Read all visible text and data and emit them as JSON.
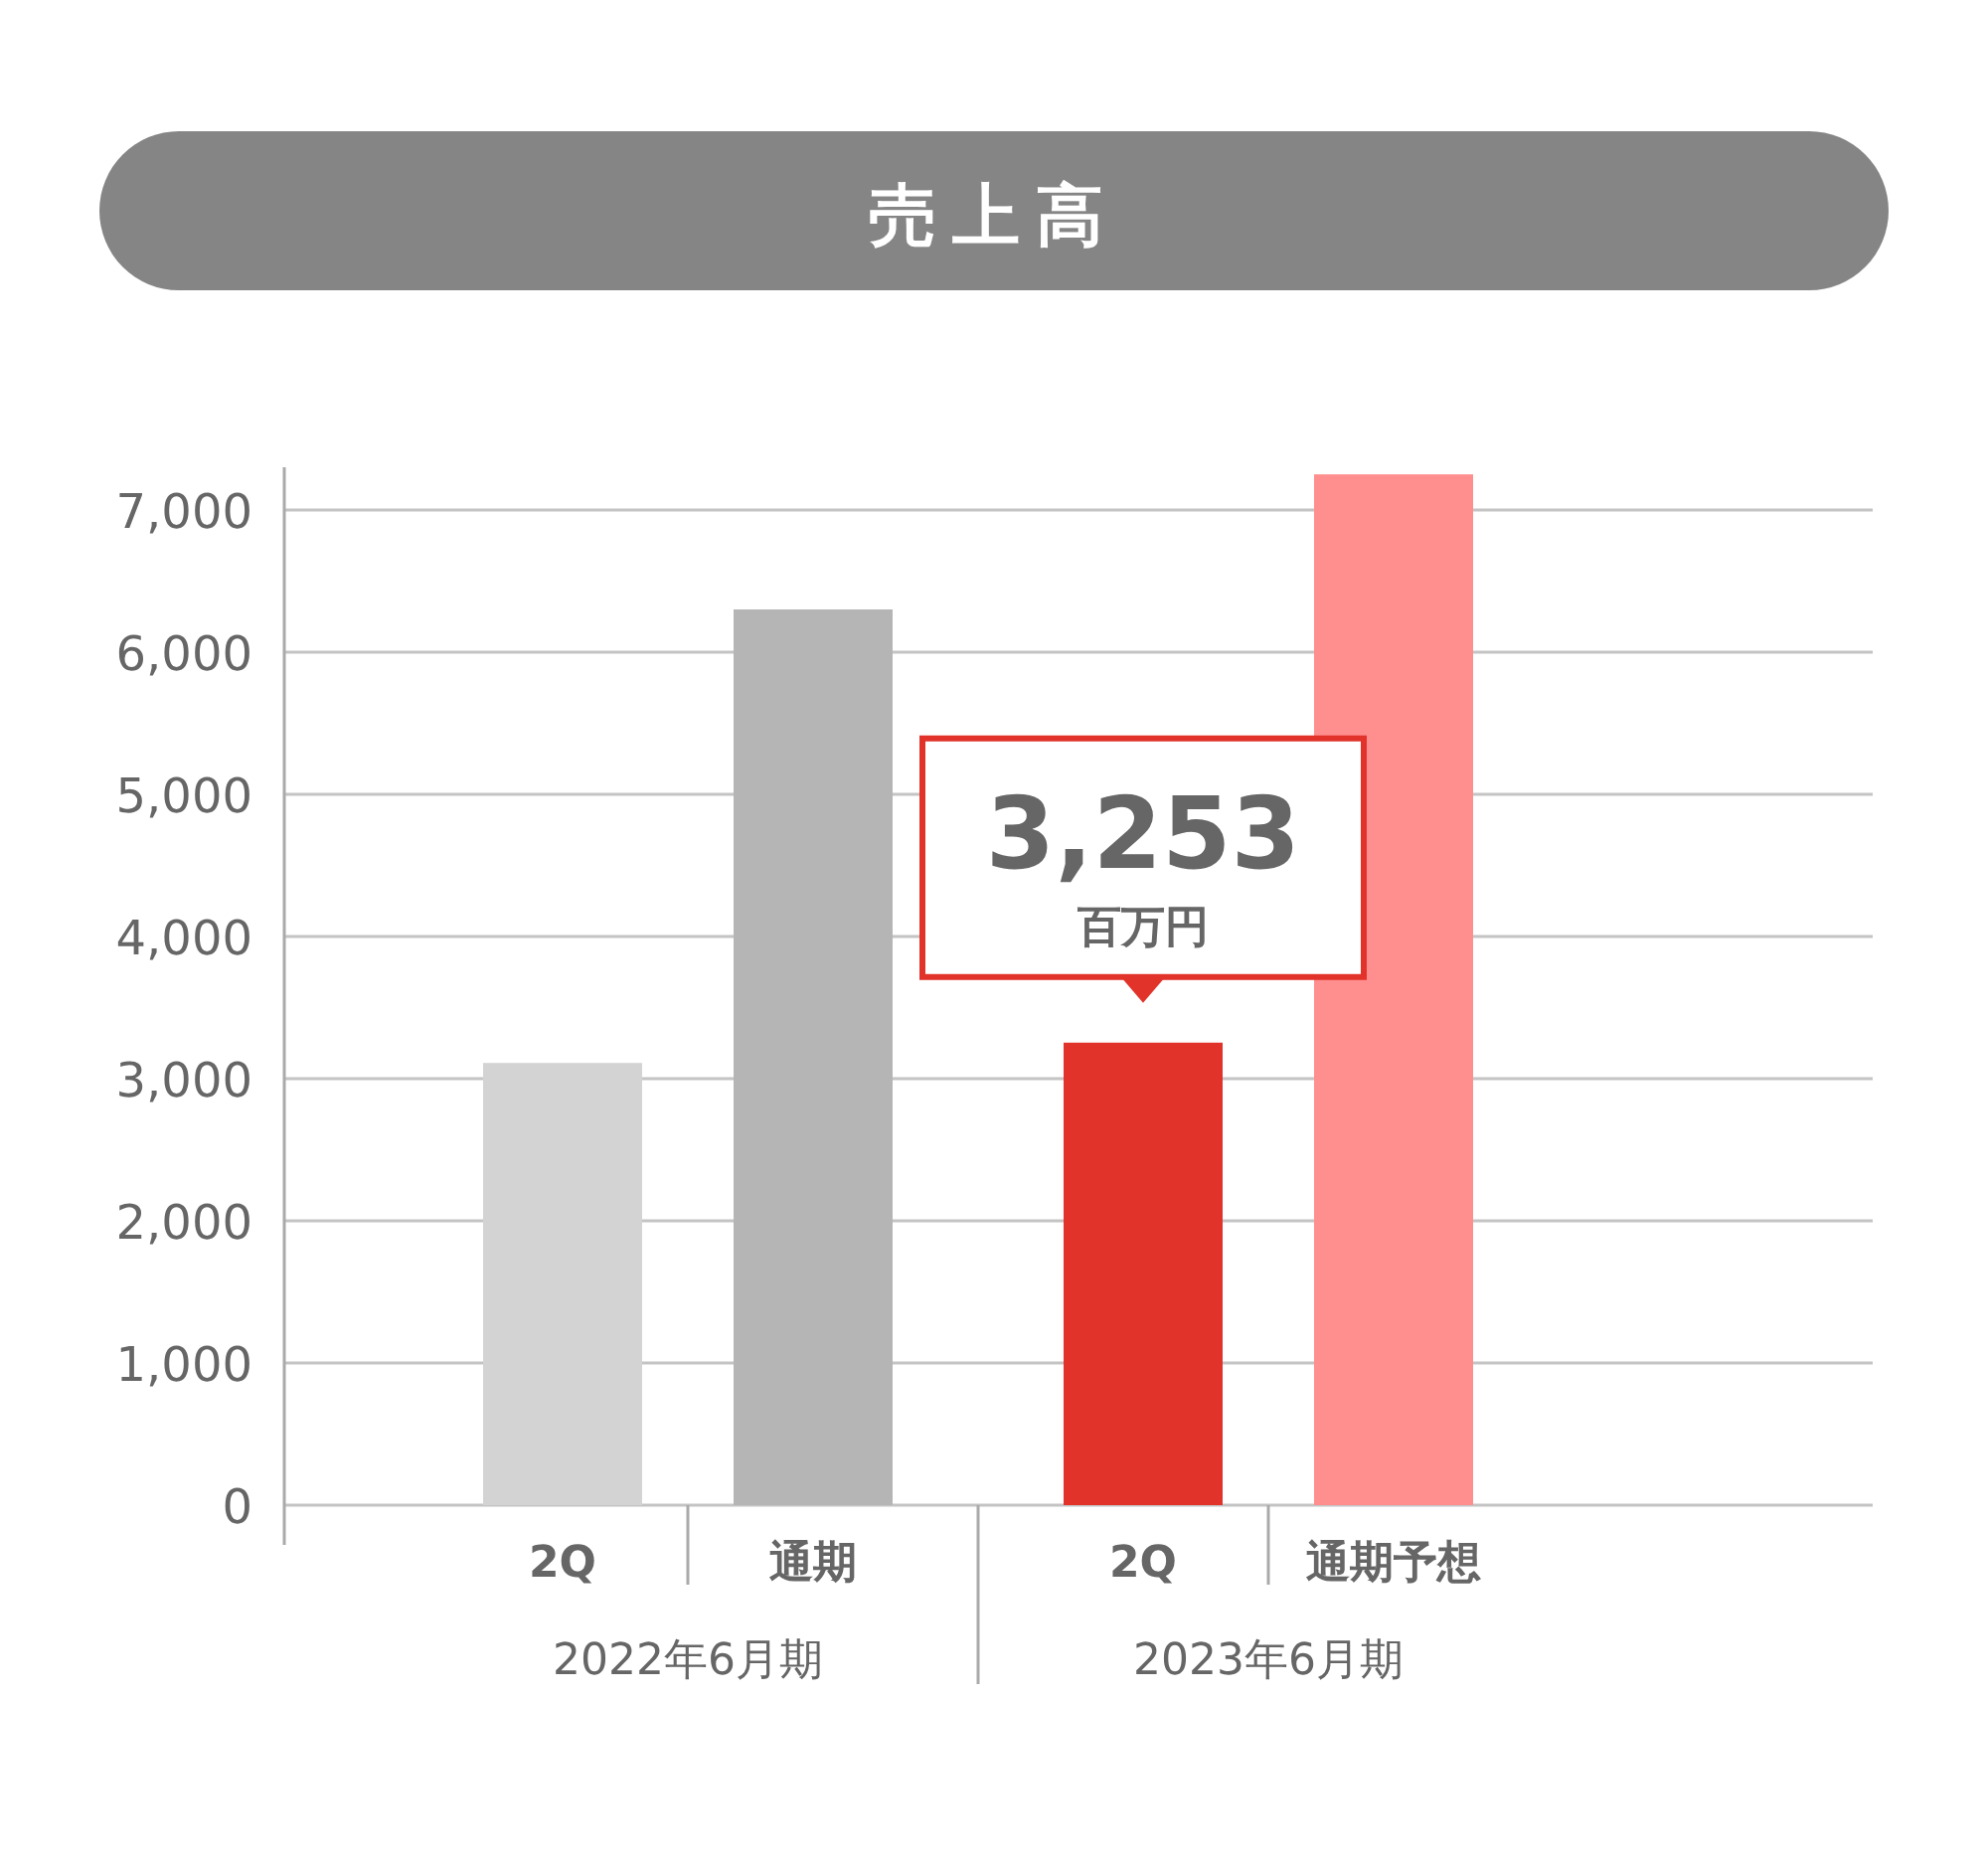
{
  "chart_data": {
    "type": "bar",
    "title": "売上高",
    "categories": [
      "2Q",
      "通期",
      "2Q",
      "通期予想"
    ],
    "values": [
      3110,
      6300,
      3253,
      7250
    ],
    "colors": [
      "#d3d3d3",
      "#b5b5b5",
      "#e2332b",
      "#ff8e8e"
    ],
    "value_labels": [
      null,
      null,
      "3,253",
      null
    ],
    "annotations": [
      "2022年6月期",
      "2023年6月期",
      "百万円"
    ],
    "ylim": [
      0,
      7300
    ],
    "yticks": [
      0,
      {
        "value": 1000,
        "label": "1,000"
      },
      {
        "value": 2000,
        "label": "2,000"
      },
      {
        "value": 3000,
        "label": "3,000"
      },
      {
        "value": 4000,
        "label": "4,000"
      },
      {
        "value": 5000,
        "label": "5,000"
      },
      {
        "value": 6000,
        "label": "6,000"
      },
      {
        "value": 7000,
        "label": "7,000"
      }
    ],
    "grid": "y"
  }
}
